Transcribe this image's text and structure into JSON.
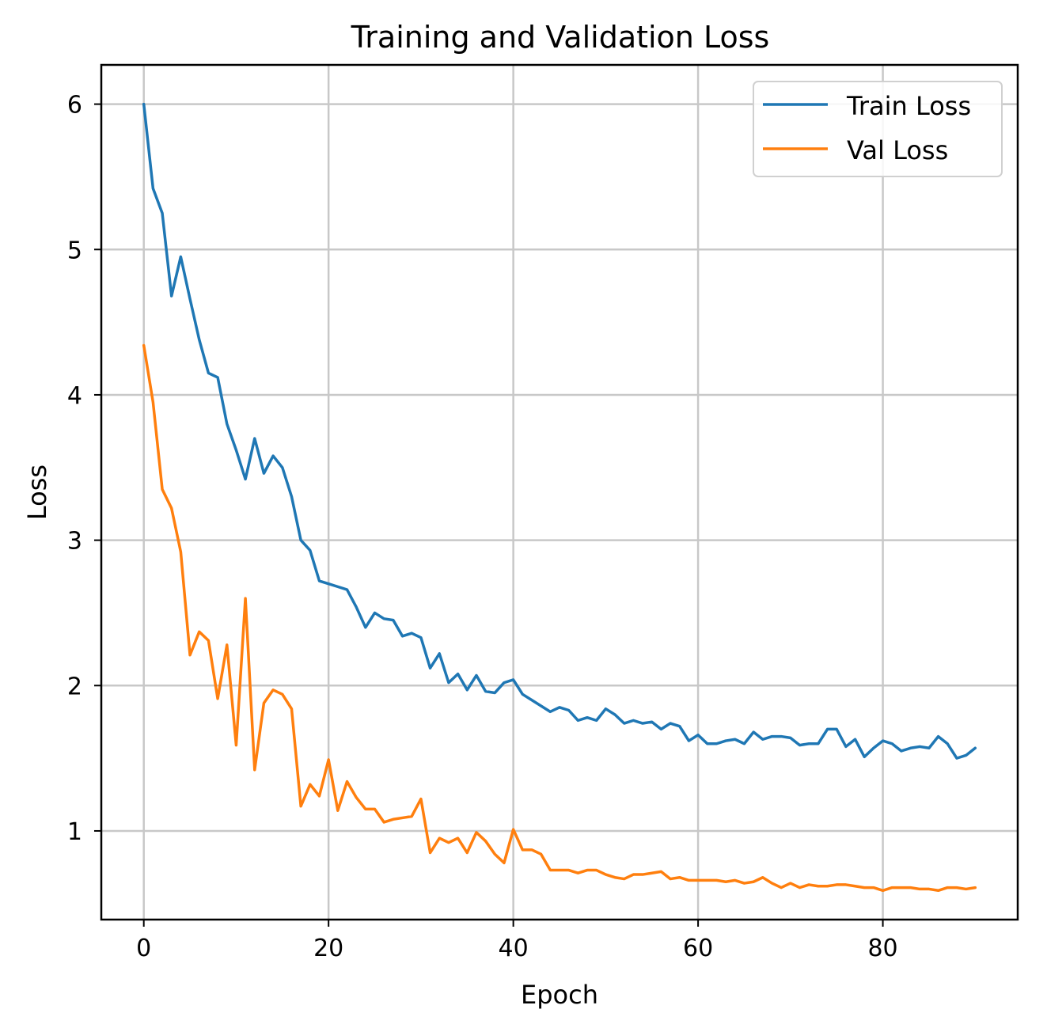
{
  "chart_data": {
    "type": "line",
    "title": "Training and Validation Loss",
    "xlabel": "Epoch",
    "ylabel": "Loss",
    "xlim": [
      -4.6,
      94.6
    ],
    "ylim": [
      0.39,
      6.27
    ],
    "xticks": [
      0,
      20,
      40,
      60,
      80
    ],
    "yticks": [
      1,
      2,
      3,
      4,
      5,
      6
    ],
    "grid": true,
    "legend_position": "top-right",
    "series": [
      {
        "name": "Train Loss",
        "color": "#1f77b4",
        "values": [
          6.0,
          5.42,
          5.25,
          4.68,
          4.95,
          4.66,
          4.38,
          4.15,
          4.12,
          3.8,
          3.62,
          3.42,
          3.7,
          3.46,
          3.58,
          3.5,
          3.3,
          3.0,
          2.93,
          2.72,
          2.7,
          2.68,
          2.66,
          2.54,
          2.4,
          2.5,
          2.46,
          2.45,
          2.34,
          2.36,
          2.33,
          2.12,
          2.22,
          2.02,
          2.08,
          1.97,
          2.07,
          1.96,
          1.95,
          2.02,
          2.04,
          1.94,
          1.9,
          1.86,
          1.82,
          1.85,
          1.83,
          1.76,
          1.78,
          1.76,
          1.84,
          1.8,
          1.74,
          1.76,
          1.74,
          1.75,
          1.7,
          1.74,
          1.72,
          1.62,
          1.66,
          1.6,
          1.6,
          1.62,
          1.63,
          1.6,
          1.68,
          1.63,
          1.65,
          1.65,
          1.64,
          1.59,
          1.6,
          1.6,
          1.7,
          1.7,
          1.58,
          1.63,
          1.51,
          1.57,
          1.62,
          1.6,
          1.55,
          1.57,
          1.58,
          1.57,
          1.65,
          1.6,
          1.5,
          1.52,
          1.57
        ]
      },
      {
        "name": "Val Loss",
        "color": "#ff7f0e",
        "values": [
          4.34,
          3.95,
          3.35,
          3.22,
          2.92,
          2.21,
          2.37,
          2.31,
          1.91,
          2.28,
          1.59,
          2.6,
          1.42,
          1.88,
          1.97,
          1.94,
          1.84,
          1.17,
          1.32,
          1.24,
          1.49,
          1.14,
          1.34,
          1.23,
          1.15,
          1.15,
          1.06,
          1.08,
          1.09,
          1.1,
          1.22,
          0.85,
          0.95,
          0.92,
          0.95,
          0.85,
          0.99,
          0.93,
          0.84,
          0.78,
          1.01,
          0.87,
          0.87,
          0.84,
          0.73,
          0.73,
          0.73,
          0.71,
          0.73,
          0.73,
          0.7,
          0.68,
          0.67,
          0.7,
          0.7,
          0.71,
          0.72,
          0.67,
          0.68,
          0.66,
          0.66,
          0.66,
          0.66,
          0.65,
          0.66,
          0.64,
          0.65,
          0.68,
          0.64,
          0.61,
          0.64,
          0.61,
          0.63,
          0.62,
          0.62,
          0.63,
          0.63,
          0.62,
          0.61,
          0.61,
          0.59,
          0.61,
          0.61,
          0.61,
          0.6,
          0.6,
          0.59,
          0.61,
          0.61,
          0.6,
          0.61
        ]
      }
    ]
  }
}
